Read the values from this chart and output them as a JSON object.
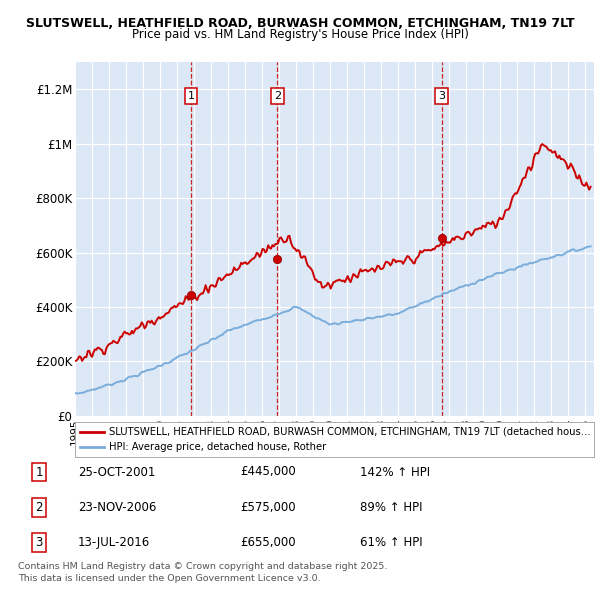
{
  "title1": "SLUTSWELL, HEATHFIELD ROAD, BURWASH COMMON, ETCHINGHAM, TN19 7LT",
  "title2": "Price paid vs. HM Land Registry's House Price Index (HPI)",
  "ylim": [
    0,
    1300000
  ],
  "xlim_start": 1995.0,
  "xlim_end": 2025.5,
  "background_color": "#dce8f5",
  "grid_color": "#ffffff",
  "sale_color": "#cc0000",
  "hpi_color": "#7aaddb",
  "vline_color": "#cc0000",
  "sale_dates": [
    2001.82,
    2006.9,
    2016.54
  ],
  "sale_prices": [
    445000,
    575000,
    655000
  ],
  "sale_labels": [
    "1",
    "2",
    "3"
  ],
  "legend_sale": "SLUTSWELL, HEATHFIELD ROAD, BURWASH COMMON, ETCHINGHAM, TN19 7LT (detached hous…",
  "legend_hpi": "HPI: Average price, detached house, Rother",
  "table_rows": [
    {
      "num": "1",
      "date": "25-OCT-2001",
      "price": "£445,000",
      "change": "142% ↑ HPI"
    },
    {
      "num": "2",
      "date": "23-NOV-2006",
      "price": "£575,000",
      "change": "89% ↑ HPI"
    },
    {
      "num": "3",
      "date": "13-JUL-2016",
      "price": "£655,000",
      "change": "61% ↑ HPI"
    }
  ],
  "footer": "Contains HM Land Registry data © Crown copyright and database right 2025.\nThis data is licensed under the Open Government Licence v3.0.",
  "yticks": [
    0,
    200000,
    400000,
    600000,
    800000,
    1000000,
    1200000
  ],
  "ytick_labels": [
    "£0",
    "£200K",
    "£400K",
    "£600K",
    "£800K",
    "£1M",
    "£1.2M"
  ]
}
